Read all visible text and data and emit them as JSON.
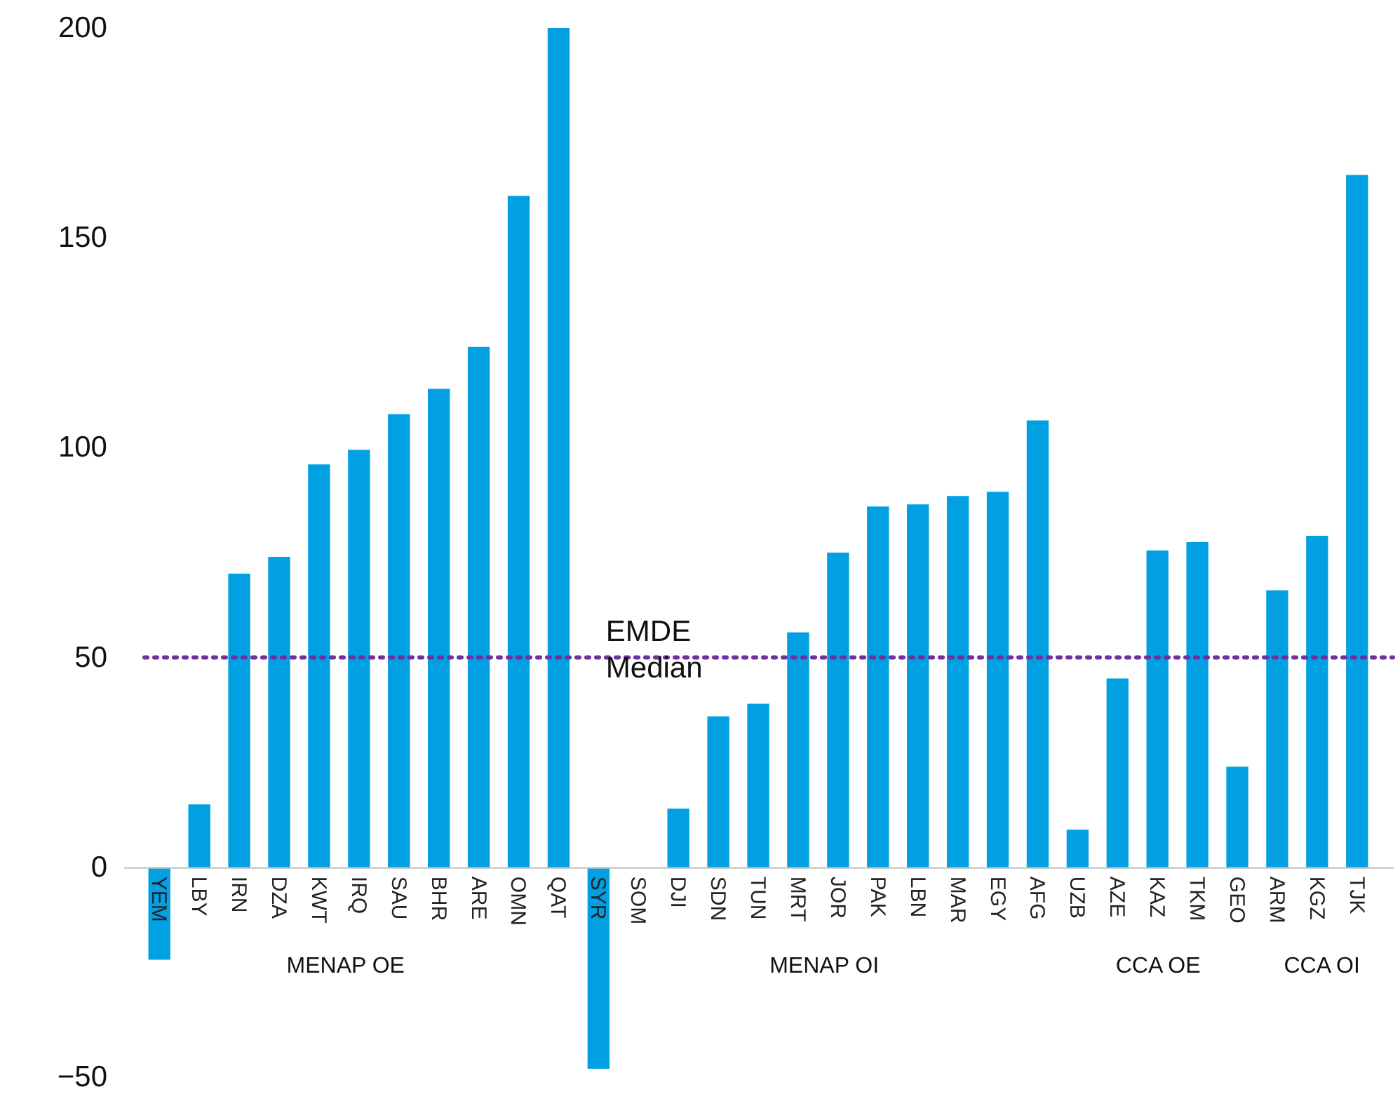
{
  "chart_data": {
    "type": "bar",
    "categories": [
      "YEM",
      "LBY",
      "IRN",
      "DZA",
      "KWT",
      "IRQ",
      "SAU",
      "BHR",
      "ARE",
      "OMN",
      "QAT",
      "SYR",
      "SOM",
      "DJI",
      "SDN",
      "TUN",
      "MRT",
      "JOR",
      "PAK",
      "LBN",
      "MAR",
      "EGY",
      "AFG",
      "UZB",
      "AZE",
      "KAZ",
      "TKM",
      "GEO",
      "ARM",
      "KGZ",
      "TJK"
    ],
    "values": [
      -22,
      15,
      70,
      74,
      96,
      99.5,
      108,
      114,
      124,
      160,
      200,
      -48,
      0,
      14,
      36,
      39,
      56,
      75,
      86,
      86.5,
      88.5,
      89.5,
      106.5,
      9,
      45,
      75.5,
      77.5,
      24,
      66,
      79,
      165
    ],
    "color": "#00a0e3",
    "ylim": [
      -50,
      200
    ],
    "yticks": [
      -50,
      0,
      50,
      100,
      150,
      200
    ],
    "grid": false,
    "ref_lines": [
      {
        "axis": "y",
        "value": 50,
        "label": "EMDE\nMedian",
        "color": "#7030a0",
        "line_style": "dotted"
      }
    ],
    "annotations": [
      "MENAP OE",
      "MENAP OI",
      "CCA OE",
      "CCA OI"
    ]
  }
}
